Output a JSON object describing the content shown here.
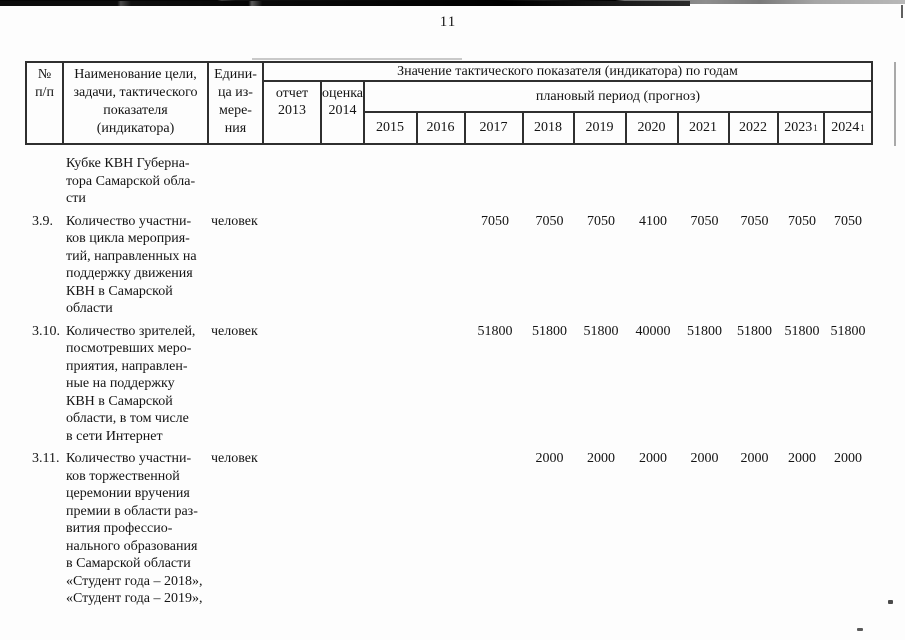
{
  "page": {
    "number": "11"
  },
  "colors": {
    "text": "#141414",
    "table_border": "#2f2f2f",
    "page_background": "#fdfdfd"
  },
  "table": {
    "header": {
      "num": "№\nп/п",
      "name": "Наименование цели,\nзадачи, тактического\nпоказателя\n(индикатора)",
      "unit": "Едини-\nца из-\nмере-\nния",
      "value_by_years": "Значение тактического показателя (индикатора) по годам",
      "report": "отчет\n2013",
      "estimate": "оценка\n2014",
      "plan_period": "плановый период (прогноз)",
      "years": [
        {
          "label": "2015",
          "sup": ""
        },
        {
          "label": "2016",
          "sup": ""
        },
        {
          "label": "2017",
          "sup": ""
        },
        {
          "label": "2018",
          "sup": ""
        },
        {
          "label": "2019",
          "sup": ""
        },
        {
          "label": "2020",
          "sup": ""
        },
        {
          "label": "2021",
          "sup": ""
        },
        {
          "label": "2022",
          "sup": ""
        },
        {
          "label": "2023",
          "sup": "1"
        },
        {
          "label": "2024",
          "sup": "1"
        }
      ]
    },
    "rows": [
      {
        "num": "",
        "name": "Кубке КВН Губерна-\nтора Самарской обла-\nсти",
        "unit": "",
        "values": [
          "",
          "",
          "",
          "",
          "",
          "",
          "",
          "",
          "",
          "",
          "",
          ""
        ]
      },
      {
        "num": "3.9.",
        "name": "Количество участни-\nков цикла мероприя-\nтий, направленных на\nподдержку движения\nКВН в Самарской\nобласти",
        "unit": "человек",
        "values": [
          "",
          "",
          "",
          "",
          "7050",
          "7050",
          "7050",
          "4100",
          "7050",
          "7050",
          "7050",
          "7050"
        ]
      },
      {
        "num": "3.10.",
        "name": "Количество зрителей,\nпосмотревших меро-\nприятия, направлен-\nные на поддержку\nКВН в Самарской\nобласти, в том числе\nв сети Интернет",
        "unit": "человек",
        "values": [
          "",
          "",
          "",
          "",
          "51800",
          "51800",
          "51800",
          "40000",
          "51800",
          "51800",
          "51800",
          "51800"
        ]
      },
      {
        "num": "3.11.",
        "name": "Количество участни-\nков торжественной\nцеремонии вручения\nпремии в области раз-\nвития профессио-\nнального образования\nв Самарской области\n«Студент года – 2018»,\n«Студент года – 2019»,",
        "unit": "человек",
        "values": [
          "",
          "",
          "",
          "",
          "",
          "2000",
          "2000",
          "2000",
          "2000",
          "2000",
          "2000",
          "2000"
        ]
      }
    ]
  }
}
